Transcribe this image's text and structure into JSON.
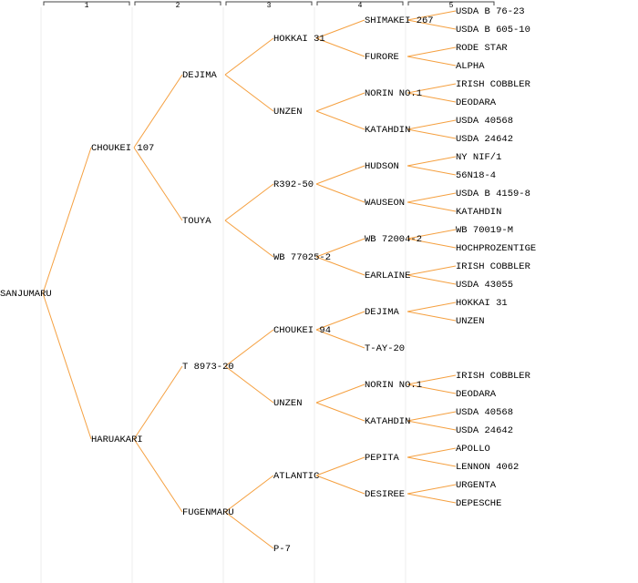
{
  "columns": [
    "1",
    "2",
    "3",
    "4",
    "5"
  ],
  "tree": {
    "label": "SANJUMARU",
    "children": [
      {
        "label": "CHOUKEI 107",
        "children": [
          {
            "label": "DEJIMA",
            "children": [
              {
                "label": "HOKKAI 31",
                "children": [
                  {
                    "label": "SHIMAKEI 267",
                    "children": [
                      {
                        "label": "USDA B 76-23"
                      },
                      {
                        "label": "USDA B 605-10"
                      }
                    ]
                  },
                  {
                    "label": "FURORE",
                    "children": [
                      {
                        "label": "RODE STAR"
                      },
                      {
                        "label": "ALPHA"
                      }
                    ]
                  }
                ]
              },
              {
                "label": "UNZEN",
                "children": [
                  {
                    "label": "NORIN NO.1",
                    "children": [
                      {
                        "label": "IRISH COBBLER"
                      },
                      {
                        "label": "DEODARA"
                      }
                    ]
                  },
                  {
                    "label": "KATAHDIN",
                    "children": [
                      {
                        "label": "USDA 40568"
                      },
                      {
                        "label": "USDA 24642"
                      }
                    ]
                  }
                ]
              }
            ]
          },
          {
            "label": "TOUYA",
            "children": [
              {
                "label": "R392-50",
                "children": [
                  {
                    "label": "HUDSON",
                    "children": [
                      {
                        "label": "NY NIF/1"
                      },
                      {
                        "label": "56N18-4"
                      }
                    ]
                  },
                  {
                    "label": "WAUSEON",
                    "children": [
                      {
                        "label": "USDA B 4159-8"
                      },
                      {
                        "label": "KATAHDIN"
                      }
                    ]
                  }
                ]
              },
              {
                "label": "WB 77025-2",
                "children": [
                  {
                    "label": "WB 72004-2",
                    "children": [
                      {
                        "label": "WB 70019-M"
                      },
                      {
                        "label": "HOCHPROZENTIGE"
                      }
                    ]
                  },
                  {
                    "label": "EARLAINE",
                    "children": [
                      {
                        "label": "IRISH COBBLER"
                      },
                      {
                        "label": "USDA 43055"
                      }
                    ]
                  }
                ]
              }
            ]
          }
        ]
      },
      {
        "label": "HARUAKARI",
        "children": [
          {
            "label": "T 8973-20",
            "children": [
              {
                "label": "CHOUKEI 94",
                "children": [
                  {
                    "label": "DEJIMA",
                    "children": [
                      {
                        "label": "HOKKAI 31"
                      },
                      {
                        "label": "UNZEN"
                      }
                    ]
                  },
                  {
                    "label": "T-AY-20"
                  }
                ]
              },
              {
                "label": "UNZEN",
                "children": [
                  {
                    "label": "NORIN NO.1",
                    "children": [
                      {
                        "label": "IRISH COBBLER"
                      },
                      {
                        "label": "DEODARA"
                      }
                    ]
                  },
                  {
                    "label": "KATAHDIN",
                    "children": [
                      {
                        "label": "USDA 40568"
                      },
                      {
                        "label": "USDA 24642"
                      }
                    ]
                  }
                ]
              }
            ]
          },
          {
            "label": "FUGENMARU",
            "children": [
              {
                "label": "ATLANTIC",
                "color": "#0000cc",
                "children": [
                  {
                    "label": "PEPITA",
                    "children": [
                      {
                        "label": "APOLLO"
                      },
                      {
                        "label": "LENNON 4062"
                      }
                    ]
                  },
                  {
                    "label": "DESIREE",
                    "children": [
                      {
                        "label": "URGENTA"
                      },
                      {
                        "label": "DEPESCHE"
                      }
                    ]
                  }
                ]
              },
              {
                "label": "P-7"
              }
            ]
          }
        ]
      }
    ]
  }
}
